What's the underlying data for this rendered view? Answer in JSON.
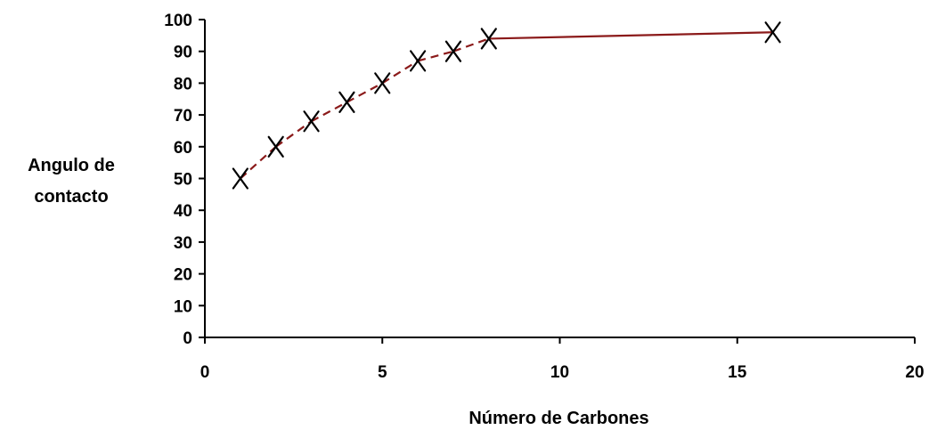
{
  "chart_data": {
    "type": "line",
    "title": "",
    "xlabel": "Número de Carbones",
    "ylabel_lines": [
      "Angulo de",
      "contacto"
    ],
    "xlim": [
      0,
      20
    ],
    "ylim": [
      0,
      100
    ],
    "x_ticks": [
      0,
      5,
      10,
      15,
      20
    ],
    "y_ticks": [
      0,
      10,
      20,
      30,
      40,
      50,
      60,
      70,
      80,
      90,
      100
    ],
    "grid": false,
    "legend": "none",
    "line_color": "#8b1a1a",
    "marker": "x",
    "series": [
      {
        "x": [
          1,
          2,
          3,
          4,
          5,
          6,
          7,
          8,
          16
        ],
        "y": [
          50,
          60,
          68,
          74,
          80,
          87,
          90,
          94,
          96
        ],
        "segment_styles": [
          "dashed",
          "dashed",
          "dashed",
          "dashed",
          "dashed",
          "dashed",
          "dashed",
          "solid"
        ]
      }
    ]
  }
}
